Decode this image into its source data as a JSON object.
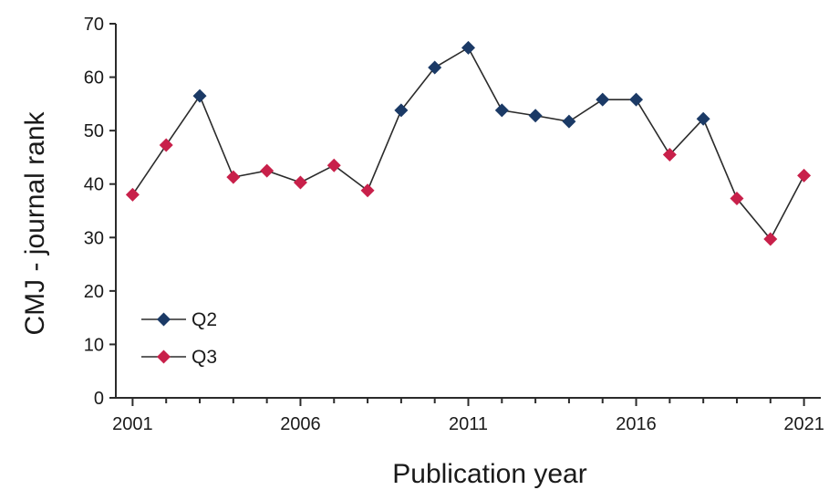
{
  "chart_data": {
    "type": "line",
    "title": "",
    "xlabel": "Publication year",
    "ylabel": "CMJ - journal rank",
    "xlim": [
      2000.5,
      2021.5
    ],
    "ylim": [
      0,
      70
    ],
    "x_ticks": [
      2001,
      2006,
      2011,
      2016,
      2021
    ],
    "y_ticks": [
      0,
      10,
      20,
      30,
      40,
      50,
      60,
      70
    ],
    "grid": false,
    "legend_position": "bottom-left",
    "line_color": "#2b2b2b",
    "categories": [
      "Q2",
      "Q3"
    ],
    "category_colors": {
      "Q2": "#1b3a66",
      "Q3": "#c8204a"
    },
    "legend": [
      {
        "label": "Q2",
        "color": "#1b3a66"
      },
      {
        "label": "Q3",
        "color": "#c8204a"
      }
    ],
    "points": [
      {
        "x": 2001,
        "y": 38,
        "quartile": "Q3"
      },
      {
        "x": 2002,
        "y": 47.3,
        "quartile": "Q3"
      },
      {
        "x": 2003,
        "y": 56.5,
        "quartile": "Q2"
      },
      {
        "x": 2004,
        "y": 41.3,
        "quartile": "Q3"
      },
      {
        "x": 2005,
        "y": 42.5,
        "quartile": "Q3"
      },
      {
        "x": 2006,
        "y": 40.3,
        "quartile": "Q3"
      },
      {
        "x": 2007,
        "y": 43.5,
        "quartile": "Q3"
      },
      {
        "x": 2008,
        "y": 38.8,
        "quartile": "Q3"
      },
      {
        "x": 2009,
        "y": 53.8,
        "quartile": "Q2"
      },
      {
        "x": 2010,
        "y": 61.8,
        "quartile": "Q2"
      },
      {
        "x": 2011,
        "y": 65.5,
        "quartile": "Q2"
      },
      {
        "x": 2012,
        "y": 53.8,
        "quartile": "Q2"
      },
      {
        "x": 2013,
        "y": 52.8,
        "quartile": "Q2"
      },
      {
        "x": 2014,
        "y": 51.7,
        "quartile": "Q2"
      },
      {
        "x": 2015,
        "y": 55.8,
        "quartile": "Q2"
      },
      {
        "x": 2016,
        "y": 55.8,
        "quartile": "Q2"
      },
      {
        "x": 2017,
        "y": 45.5,
        "quartile": "Q3"
      },
      {
        "x": 2018,
        "y": 52.2,
        "quartile": "Q2"
      },
      {
        "x": 2019,
        "y": 37.3,
        "quartile": "Q3"
      },
      {
        "x": 2020,
        "y": 29.7,
        "quartile": "Q3"
      },
      {
        "x": 2021,
        "y": 41.6,
        "quartile": "Q3"
      }
    ]
  }
}
